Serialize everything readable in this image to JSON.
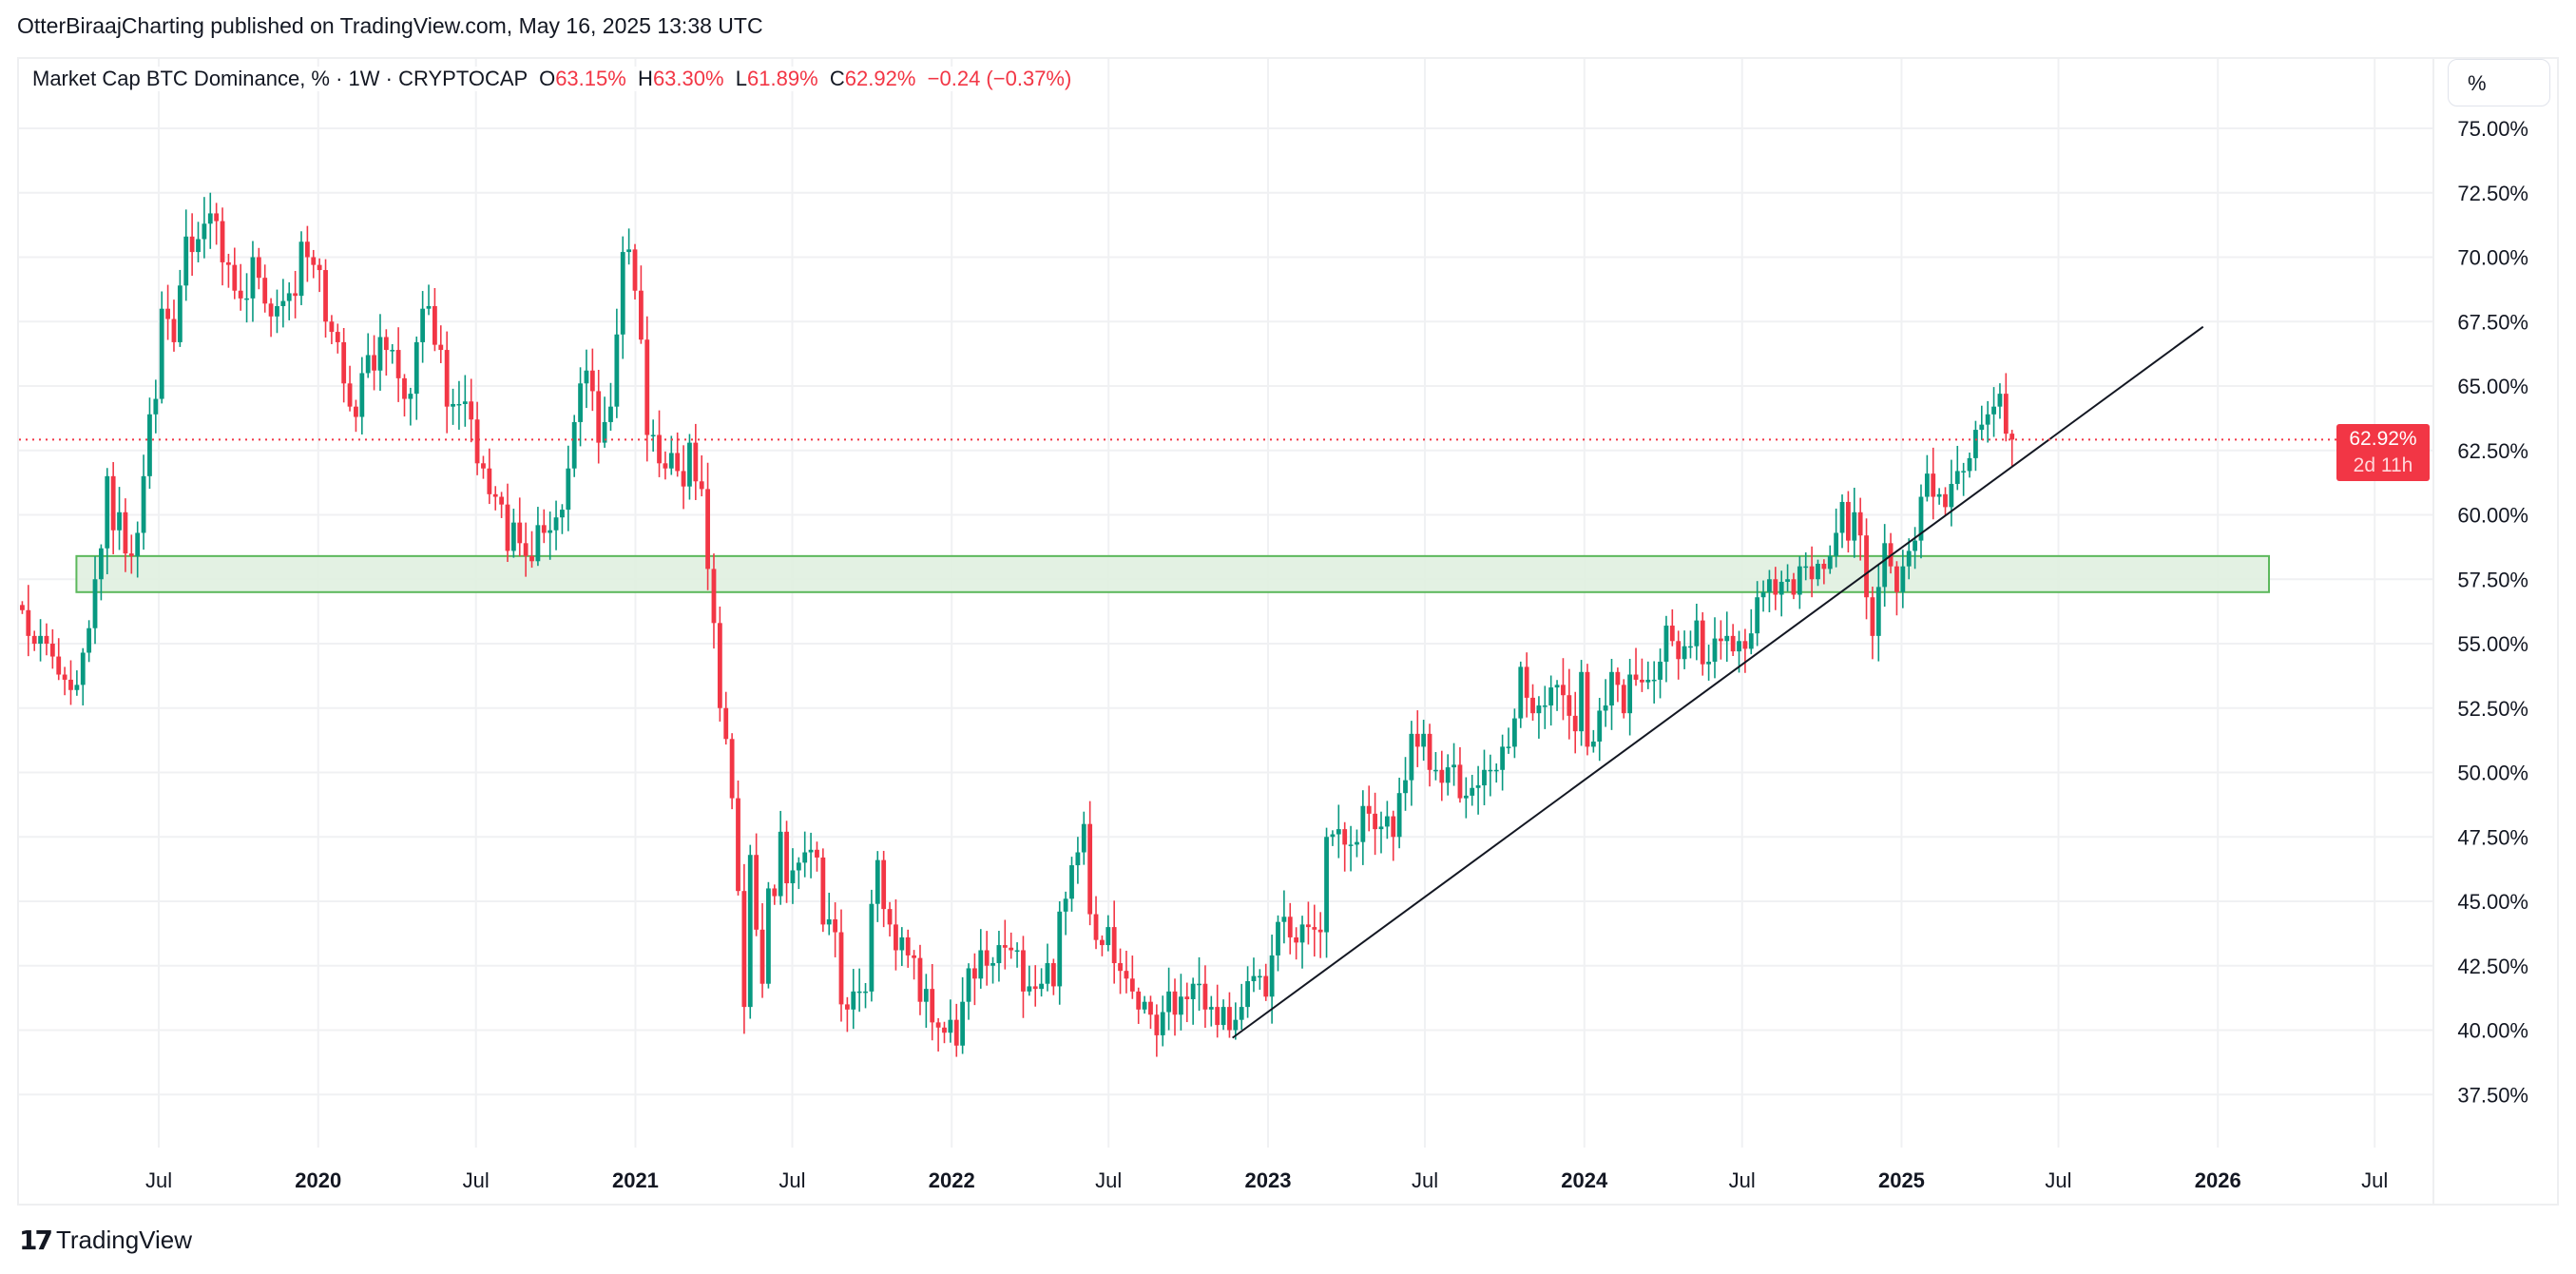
{
  "header": {
    "published": "OtterBiraajCharting published on TradingView.com, May 16, 2025 13:38 UTC"
  },
  "legend": {
    "symbol": "Market Cap BTC Dominance, % · 1W · CRYPTOCAP",
    "o_label": "O",
    "o": "63.15%",
    "h_label": "H",
    "h": "63.30%",
    "l_label": "L",
    "l": "61.89%",
    "c_label": "C",
    "c": "62.92%",
    "change": "−0.24 (−0.37%)"
  },
  "scale_button": "%",
  "last_price": {
    "value": "62.92%",
    "countdown": "2d 11h"
  },
  "footer": {
    "logo_text": "TradingView",
    "logo_mark": "17"
  },
  "colors": {
    "up": "#089981",
    "down": "#f23645",
    "zone_fill": "#e0f0e0",
    "zone_border": "#5cb85c",
    "trendline": "#131722",
    "grid": "#f0f1f3"
  },
  "chart_data": {
    "type": "candlestick",
    "interval": "1W",
    "first_week": "2019-01-21",
    "ylim": [
      35.5,
      77.5
    ],
    "y_ticks": [
      "37.50%",
      "40.00%",
      "42.50%",
      "45.00%",
      "47.50%",
      "50.00%",
      "52.50%",
      "55.00%",
      "57.50%",
      "60.00%",
      "62.50%",
      "65.00%",
      "67.50%",
      "70.00%",
      "72.50%",
      "75.00%"
    ],
    "x_ticks": [
      {
        "date": "2019-07-01",
        "label": "Jul"
      },
      {
        "date": "2020-01-01",
        "label": "2020"
      },
      {
        "date": "2020-07-01",
        "label": "Jul"
      },
      {
        "date": "2021-01-01",
        "label": "2021"
      },
      {
        "date": "2021-07-01",
        "label": "Jul"
      },
      {
        "date": "2022-01-01",
        "label": "2022"
      },
      {
        "date": "2022-07-01",
        "label": "Jul"
      },
      {
        "date": "2023-01-01",
        "label": "2023"
      },
      {
        "date": "2023-07-01",
        "label": "Jul"
      },
      {
        "date": "2024-01-01",
        "label": "2024"
      },
      {
        "date": "2024-07-01",
        "label": "Jul"
      },
      {
        "date": "2025-01-01",
        "label": "2025"
      },
      {
        "date": "2025-07-01",
        "label": "Jul"
      },
      {
        "date": "2026-01-01",
        "label": "2026"
      },
      {
        "date": "2026-07-01",
        "label": "Jul"
      }
    ],
    "close": [
      56.3,
      55.3,
      55.0,
      55.3,
      55.0,
      54.5,
      53.8,
      53.6,
      53.2,
      53.4,
      54.65,
      55.6,
      57.5,
      58.7,
      61.5,
      59.4,
      60.1,
      58.5,
      58.4,
      59.3,
      61.5,
      63.9,
      64.5,
      68.0,
      67.6,
      66.7,
      68.9,
      70.8,
      70.2,
      70.7,
      71.3,
      71.7,
      71.4,
      69.8,
      69.7,
      68.7,
      68.4,
      68.4,
      70.0,
      69.2,
      68.2,
      67.7,
      68.1,
      68.3,
      68.6,
      68.5,
      70.6,
      70.0,
      69.7,
      69.5,
      67.5,
      67.1,
      66.7,
      65.1,
      64.2,
      63.8,
      65.5,
      66.2,
      65.6,
      66.9,
      66.4,
      66.4,
      65.3,
      64.5,
      64.7,
      66.7,
      68.0,
      68.1,
      66.6,
      66.4,
      64.2,
      64.3,
      64.3,
      64.4,
      63.7,
      62.0,
      61.8,
      60.8,
      60.7,
      60.4,
      58.6,
      59.7,
      58.9,
      58.4,
      58.2,
      59.6,
      59.3,
      59.4,
      59.9,
      60.2,
      61.8,
      63.6,
      65.1,
      65.6,
      64.8,
      62.8,
      63.6,
      64.2,
      67.0,
      70.2,
      70.3,
      68.7,
      66.8,
      63.1,
      63.1,
      62.0,
      61.8,
      62.4,
      61.7,
      61.1,
      62.8,
      61.3,
      61.0,
      57.9,
      55.8,
      52.5,
      51.3,
      49.0,
      45.4,
      40.9,
      46.8,
      43.9,
      41.8,
      45.5,
      45.2,
      47.7,
      45.7,
      46.2,
      46.5,
      46.9,
      47.0,
      46.7,
      44.1,
      44.3,
      43.8,
      41.0,
      40.8,
      41.5,
      41.5,
      41.5,
      44.9,
      46.6,
      44.7,
      44.1,
      43.1,
      43.6,
      42.9,
      42.8,
      41.1,
      41.6,
      40.3,
      40.1,
      39.9,
      40.4,
      39.4,
      41.1,
      42.4,
      42.0,
      43.1,
      42.5,
      42.6,
      43.3,
      43.2,
      43.1,
      43.1,
      41.5,
      41.7,
      41.6,
      41.8,
      42.6,
      41.7,
      44.6,
      45.1,
      46.4,
      46.9,
      48.0,
      44.5,
      43.5,
      43.3,
      44.0,
      42.6,
      42.3,
      42.0,
      41.5,
      40.8,
      41.1,
      40.6,
      39.8,
      40.7,
      41.5,
      40.6,
      41.3,
      41.2,
      41.8,
      41.8,
      40.8,
      40.9,
      40.2,
      40.9,
      40.0,
      40.4,
      40.9,
      41.9,
      42.1,
      42.1,
      41.3,
      42.9,
      44.2,
      44.4,
      43.6,
      43.4,
      44.1,
      44.0,
      43.9,
      43.8,
      47.5,
      47.6,
      47.8,
      47.2,
      47.2,
      47.3,
      48.7,
      48.4,
      47.8,
      47.9,
      48.3,
      47.5,
      49.2,
      49.7,
      51.5,
      51.0,
      51.5,
      50.1,
      50.1,
      49.6,
      50.2,
      50.3,
      49.0,
      49.1,
      49.4,
      49.5,
      50.1,
      50.1,
      50.1,
      51.0,
      51.0,
      52.1,
      54.1,
      52.9,
      52.3,
      52.6,
      52.6,
      53.3,
      53.4,
      53.0,
      52.2,
      51.6,
      53.9,
      51.0,
      51.2,
      52.4,
      52.6,
      53.9,
      53.4,
      52.3,
      53.8,
      53.6,
      53.5,
      53.6,
      53.6,
      54.3,
      55.7,
      55.1,
      54.4,
      54.9,
      54.9,
      55.9,
      54.2,
      54.3,
      55.2,
      55.1,
      55.3,
      54.7,
      55.1,
      54.8,
      55.4,
      56.8,
      57.0,
      57.5,
      56.9,
      57.4,
      57.5,
      56.9,
      58.0,
      58.0,
      57.5,
      58.1,
      57.9,
      58.4,
      59.3,
      60.5,
      59.0,
      60.1,
      59.2,
      56.8,
      55.3,
      57.2,
      58.9,
      58.0,
      57.0,
      58.0,
      58.6,
      59.0,
      60.7,
      61.6,
      60.7,
      60.8,
      60.3,
      61.2,
      61.7,
      61.7,
      62.2,
      63.3,
      63.5,
      63.9,
      64.2,
      64.7,
      63.15,
      62.92
    ],
    "drawings": [
      {
        "type": "rectangle",
        "from": "2019-03-28",
        "to": "2026-03-01",
        "top": 58.4,
        "bottom": 57.0
      },
      {
        "type": "trendline",
        "from": {
          "date": "2022-11-21",
          "value": 39.7
        },
        "to": {
          "date": "2025-12-15",
          "value": 67.3
        }
      }
    ]
  }
}
